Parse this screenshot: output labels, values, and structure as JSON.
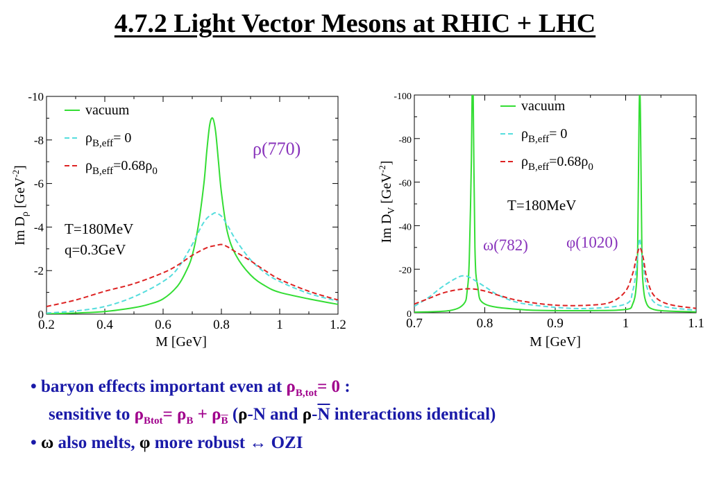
{
  "slide_title": "4.7.2  Light Vector Mesons at RHIC + LHC",
  "colors": {
    "vacuum": "#33dd33",
    "rho_zero": "#55dddd",
    "rho_068": "#dd2222",
    "label": "#8833bb",
    "text_blue": "#1a1aa8",
    "text_magenta": "#a0008c"
  },
  "chart_data": [
    {
      "type": "line",
      "xlabel": "M [GeV]",
      "ylabel": "Im Dρ [GeV⁻²]",
      "xlim": [
        0.2,
        1.2
      ],
      "ylim": [
        0,
        -10
      ],
      "xticks": [
        "0.2",
        "0.4",
        "0.6",
        "0.8",
        "1",
        "1.2"
      ],
      "yticks": [
        "0",
        "-2",
        "-4",
        "-6",
        "-8",
        "-10"
      ],
      "legend": [
        "vacuum",
        "ρB,eff= 0",
        "ρB,eff=0.68ρ0"
      ],
      "legend_position": "top-left",
      "annotations": [
        "ρ(770)",
        "T=180MeV",
        "q=0.3GeV"
      ],
      "series": [
        {
          "name": "vacuum",
          "style": "solid",
          "color": "#33dd33",
          "x": [
            0.2,
            0.3,
            0.4,
            0.5,
            0.55,
            0.6,
            0.65,
            0.68,
            0.7,
            0.72,
            0.74,
            0.75,
            0.76,
            0.77,
            0.78,
            0.79,
            0.8,
            0.82,
            0.85,
            0.9,
            0.95,
            1.0,
            1.1,
            1.2
          ],
          "y": [
            -0.02,
            -0.05,
            -0.12,
            -0.3,
            -0.45,
            -0.7,
            -1.3,
            -2.0,
            -2.7,
            -4.0,
            -6.0,
            -7.5,
            -8.7,
            -9.0,
            -8.4,
            -7.0,
            -5.6,
            -3.8,
            -2.7,
            -1.8,
            -1.3,
            -1.0,
            -0.7,
            -0.45
          ]
        },
        {
          "name": "ρB,eff= 0",
          "style": "dashed",
          "color": "#55dddd",
          "x": [
            0.2,
            0.3,
            0.4,
            0.5,
            0.6,
            0.65,
            0.7,
            0.73,
            0.75,
            0.77,
            0.78,
            0.8,
            0.82,
            0.85,
            0.9,
            0.95,
            1.0,
            1.1,
            1.2
          ],
          "y": [
            -0.05,
            -0.15,
            -0.35,
            -0.8,
            -1.5,
            -2.1,
            -3.2,
            -4.0,
            -4.4,
            -4.6,
            -4.65,
            -4.5,
            -4.1,
            -3.4,
            -2.5,
            -1.9,
            -1.5,
            -0.95,
            -0.6
          ]
        },
        {
          "name": "ρB,eff=0.68ρ0",
          "style": "dashed",
          "color": "#dd2222",
          "x": [
            0.2,
            0.3,
            0.4,
            0.5,
            0.6,
            0.65,
            0.7,
            0.75,
            0.78,
            0.8,
            0.82,
            0.85,
            0.9,
            0.95,
            1.0,
            1.1,
            1.2
          ],
          "y": [
            -0.35,
            -0.65,
            -1.05,
            -1.4,
            -1.9,
            -2.25,
            -2.7,
            -3.05,
            -3.15,
            -3.2,
            -3.1,
            -2.85,
            -2.45,
            -2.0,
            -1.6,
            -1.05,
            -0.65
          ]
        }
      ]
    },
    {
      "type": "line",
      "xlabel": "M [GeV]",
      "ylabel": "Im DV [GeV⁻²]",
      "xlim": [
        0.7,
        1.1
      ],
      "ylim": [
        0,
        -100
      ],
      "xticks": [
        "0.7",
        "0.8",
        "0.9",
        "1",
        "1.1"
      ],
      "yticks": [
        "0",
        "-20",
        "-40",
        "-60",
        "-80",
        "-100"
      ],
      "legend": [
        "vacuum",
        "ρB,eff= 0",
        "ρB,eff=0.68ρ0"
      ],
      "legend_position": "top-right",
      "annotations": [
        "T=180MeV",
        "ω(782)",
        "φ(1020)"
      ],
      "series": [
        {
          "name": "vacuum",
          "style": "solid",
          "color": "#33dd33",
          "x": [
            0.7,
            0.75,
            0.77,
            0.775,
            0.778,
            0.781,
            0.782,
            0.7835,
            0.786,
            0.79,
            0.8,
            0.85,
            0.9,
            0.95,
            1.0,
            1.01,
            1.015,
            1.017,
            1.019,
            1.02,
            1.021,
            1.023,
            1.025,
            1.03,
            1.04,
            1.06,
            1.1
          ],
          "y": [
            -0.3,
            -1.0,
            -4.0,
            -10,
            -25,
            -70,
            -100,
            -100,
            -30,
            -12,
            -4,
            -1.5,
            -1,
            -1,
            -1.5,
            -4,
            -12,
            -30,
            -90,
            -100,
            -90,
            -30,
            -12,
            -4,
            -1.5,
            -0.8,
            -0.4
          ]
        },
        {
          "name": "ρB,eff= 0",
          "style": "dashed",
          "color": "#55dddd",
          "x": [
            0.7,
            0.72,
            0.74,
            0.76,
            0.77,
            0.78,
            0.8,
            0.82,
            0.85,
            0.9,
            0.95,
            1.0,
            1.01,
            1.015,
            1.019,
            1.021,
            1.025,
            1.03,
            1.04,
            1.06,
            1.1
          ],
          "y": [
            -3,
            -7,
            -12,
            -16,
            -17,
            -16,
            -12,
            -8,
            -4.5,
            -2.5,
            -2,
            -4,
            -10,
            -20,
            -33,
            -32,
            -22,
            -12,
            -5,
            -2.5,
            -1.2
          ]
        },
        {
          "name": "ρB,eff=0.68ρ0",
          "style": "dashed",
          "color": "#dd2222",
          "x": [
            0.7,
            0.72,
            0.74,
            0.76,
            0.78,
            0.8,
            0.82,
            0.85,
            0.9,
            0.95,
            0.98,
            1.0,
            1.01,
            1.015,
            1.02,
            1.025,
            1.03,
            1.04,
            1.06,
            1.1
          ],
          "y": [
            -4,
            -6.5,
            -9,
            -10.5,
            -11,
            -10,
            -8,
            -5.5,
            -3.5,
            -3.5,
            -5,
            -10,
            -18,
            -25,
            -30,
            -25,
            -16,
            -8,
            -4,
            -2
          ]
        }
      ]
    }
  ],
  "bullets": {
    "b1_dot": "•",
    "b1_text": "baryon effects important even at ",
    "b1_rho": "ρ",
    "b1_sub": "B,tot",
    "b1_eq": "= 0",
    "b1_colon": " :",
    "b2_text": "sensitive to ",
    "b2_rho1": "ρ",
    "b2_sub1": "Btot",
    "b2_eq": "= ",
    "b2_rho2": "ρ",
    "b2_sub2": "B",
    "b2_plus": " + ",
    "b2_rho3": "ρ",
    "b2_sub3": "B",
    "b2_open": "  (",
    "b2_rho4": "ρ",
    "b2_mid": "-N and ",
    "b2_rho5": "ρ",
    "b2_dash": "-",
    "b2_nbar": "N",
    "b2_end": " interactions identical)",
    "b3_dot": "•",
    "b3_omega": "ω",
    "b3_text1": " also melts, ",
    "b3_phi": "φ",
    "b3_text2": " more robust ↔ OZI"
  }
}
